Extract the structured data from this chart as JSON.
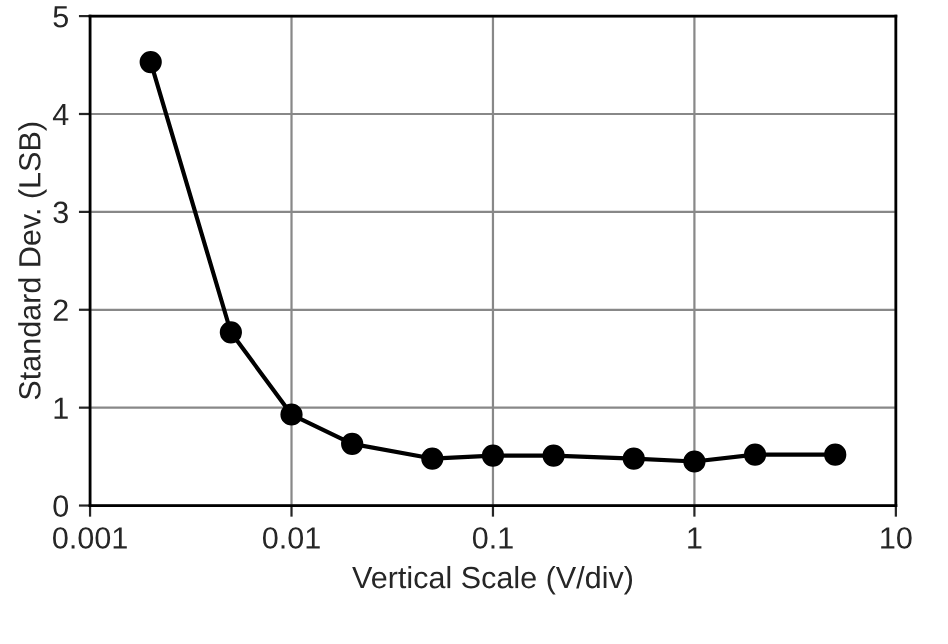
{
  "chart_data": {
    "type": "line",
    "xlabel": "Vertical Scale (V/div)",
    "ylabel": "Standard Dev. (LSB)",
    "x": [
      0.002,
      0.005,
      0.01,
      0.02,
      0.05,
      0.1,
      0.2,
      0.5,
      1,
      2,
      5
    ],
    "series": [
      {
        "color": "#000000",
        "values": [
          4.53,
          1.77,
          0.93,
          0.63,
          0.48,
          0.51,
          0.51,
          0.48,
          0.45,
          0.52,
          0.52
        ]
      }
    ],
    "log": "x",
    "xlim": [
      0.001,
      10
    ],
    "xticks": [
      0.001,
      0.01,
      0.1,
      1,
      10
    ],
    "ylim": [
      0,
      5
    ],
    "yticks": [
      0,
      1,
      2,
      3,
      4,
      5
    ],
    "grid": true,
    "marker": "circle",
    "line_style": "solid"
  }
}
